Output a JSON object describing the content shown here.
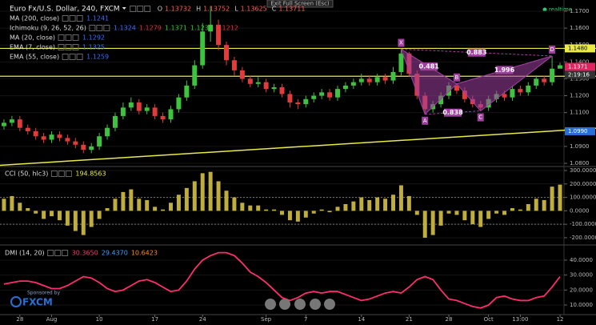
{
  "ui": {
    "exit_fullscreen": "Exit Full Screen (Esc)",
    "realtime": "realtime",
    "sponsored": "Sponsored by",
    "brand": "FXCM"
  },
  "chart_data": [
    {
      "type": "candlestick",
      "title": "Euro Fx/U.S. Dollar, 240, FXCM",
      "ohlc": [
        {
          "label": "O",
          "value": "1.13732"
        },
        {
          "label": "H",
          "value": "1.13752"
        },
        {
          "label": "L",
          "value": "1.13625"
        },
        {
          "label": "C",
          "value": "1.13711"
        }
      ],
      "indicators": [
        {
          "name": "MA (200, close)",
          "values": [
            {
              "text": "1.1241",
              "color": "#3b6cff"
            }
          ]
        },
        {
          "name": "Ichimoku (9, 26, 52, 26)",
          "values": [
            {
              "text": "1.1324",
              "color": "#3b6cff"
            },
            {
              "text": "1.1279",
              "color": "#e0303a"
            },
            {
              "text": "1.1371",
              "color": "#39c43a"
            },
            {
              "text": "1.1230",
              "color": "#39c43a"
            },
            {
              "text": "1.1212",
              "color": "#e0303a"
            }
          ]
        },
        {
          "name": "MA (20, close)",
          "values": [
            {
              "text": "1.1292",
              "color": "#3b6cff"
            }
          ]
        },
        {
          "name": "EMA (7, close)",
          "values": [
            {
              "text": "1.1325",
              "color": "#3b6cff"
            }
          ]
        },
        {
          "name": "EMA (55, close)",
          "values": [
            {
              "text": "1.1259",
              "color": "#3b6cff"
            }
          ]
        }
      ],
      "categories": [
        null,
        null,
        "28",
        null,
        null,
        null,
        "Aug",
        null,
        null,
        null,
        null,
        null,
        "10",
        null,
        null,
        null,
        null,
        null,
        null,
        "17",
        null,
        null,
        null,
        null,
        null,
        "24",
        null,
        null,
        null,
        null,
        null,
        null,
        null,
        "Sep",
        null,
        null,
        null,
        null,
        "7",
        null,
        null,
        null,
        null,
        null,
        null,
        "14",
        null,
        null,
        null,
        null,
        null,
        "21",
        null,
        null,
        null,
        null,
        "28",
        null,
        null,
        null,
        null,
        "Oct",
        null,
        null,
        null,
        "13:00",
        null,
        null,
        null,
        null,
        "12"
      ],
      "open": [
        1.102,
        1.104,
        1.106,
        1.101,
        1.099,
        1.096,
        1.094,
        1.097,
        1.095,
        1.093,
        1.091,
        1.088,
        1.09,
        1.096,
        1.101,
        1.108,
        1.113,
        1.116,
        1.111,
        1.113,
        1.108,
        1.106,
        1.112,
        1.119,
        1.126,
        1.138,
        1.158,
        1.162,
        1.15,
        1.141,
        1.135,
        1.13,
        1.127,
        1.128,
        1.124,
        1.125,
        1.121,
        1.116,
        1.115,
        1.118,
        1.12,
        1.122,
        1.119,
        1.124,
        1.126,
        1.128,
        1.13,
        1.128,
        1.131,
        1.129,
        1.134,
        1.145,
        1.133,
        1.12,
        1.112,
        1.115,
        1.12,
        1.126,
        1.123,
        1.118,
        1.115,
        1.113,
        1.118,
        1.121,
        1.119,
        1.124,
        1.122,
        1.126,
        1.13,
        1.128,
        1.136
      ],
      "high": [
        1.106,
        1.108,
        1.108,
        1.103,
        1.101,
        1.098,
        1.099,
        1.099,
        1.097,
        1.095,
        1.093,
        1.092,
        1.098,
        1.103,
        1.11,
        1.116,
        1.119,
        1.118,
        1.115,
        1.115,
        1.11,
        1.114,
        1.121,
        1.129,
        1.141,
        1.163,
        1.173,
        1.165,
        1.152,
        1.143,
        1.137,
        1.132,
        1.131,
        1.13,
        1.127,
        1.127,
        1.123,
        1.118,
        1.12,
        1.122,
        1.124,
        1.124,
        1.126,
        1.128,
        1.13,
        1.133,
        1.132,
        1.133,
        1.133,
        1.137,
        1.1475,
        1.146,
        1.135,
        1.122,
        1.117,
        1.122,
        1.128,
        1.127,
        1.125,
        1.12,
        1.117,
        1.12,
        1.123,
        1.123,
        1.126,
        1.126,
        1.128,
        1.132,
        1.132,
        1.1435,
        1.1395
      ],
      "low": [
        1.1,
        1.102,
        1.099,
        1.097,
        1.094,
        1.092,
        1.092,
        1.093,
        1.091,
        1.089,
        1.086,
        1.086,
        1.088,
        1.094,
        1.099,
        1.106,
        1.111,
        1.109,
        1.109,
        1.106,
        1.104,
        1.104,
        1.11,
        1.117,
        1.124,
        1.136,
        1.152,
        1.147,
        1.138,
        1.132,
        1.128,
        1.125,
        1.125,
        1.122,
        1.122,
        1.119,
        1.113,
        1.112,
        1.113,
        1.116,
        1.118,
        1.117,
        1.117,
        1.122,
        1.124,
        1.126,
        1.126,
        1.126,
        1.127,
        1.127,
        1.132,
        1.131,
        1.118,
        1.109,
        1.11,
        1.113,
        1.118,
        1.121,
        1.116,
        1.113,
        1.111,
        1.111,
        1.116,
        1.117,
        1.117,
        1.12,
        1.12,
        1.124,
        1.126,
        1.126,
        1.1362
      ],
      "close": [
        1.104,
        1.106,
        1.101,
        1.099,
        1.096,
        1.094,
        1.097,
        1.095,
        1.093,
        1.091,
        1.088,
        1.09,
        1.096,
        1.101,
        1.108,
        1.113,
        1.116,
        1.111,
        1.113,
        1.108,
        1.106,
        1.112,
        1.119,
        1.126,
        1.138,
        1.158,
        1.162,
        1.15,
        1.141,
        1.135,
        1.13,
        1.127,
        1.128,
        1.124,
        1.125,
        1.121,
        1.116,
        1.115,
        1.118,
        1.12,
        1.122,
        1.119,
        1.124,
        1.126,
        1.128,
        1.13,
        1.128,
        1.131,
        1.129,
        1.134,
        1.145,
        1.133,
        1.12,
        1.112,
        1.115,
        1.12,
        1.126,
        1.123,
        1.118,
        1.115,
        1.113,
        1.118,
        1.121,
        1.119,
        1.124,
        1.122,
        1.126,
        1.13,
        1.128,
        1.136,
        1.138
      ],
      "up_color": "#3fc23f",
      "down_color": "#e03c3c",
      "ylim": [
        1.0786,
        1.1733
      ],
      "yticks": [
        {
          "value": 1.17,
          "label": "1.1700"
        },
        {
          "value": 1.16,
          "label": "1.1600"
        },
        {
          "value": 1.15,
          "label": "1.1500"
        },
        {
          "value": 1.14,
          "label": "1.1400"
        },
        {
          "value": 1.13,
          "label": "1.1300"
        },
        {
          "value": 1.12,
          "label": "1.1200"
        },
        {
          "value": 1.11,
          "label": "1.1100"
        },
        {
          "value": 1.1,
          "label": "1.1000"
        },
        {
          "value": 1.09,
          "label": "1.0900"
        },
        {
          "value": 1.08,
          "label": "1.0800"
        }
      ],
      "hlines": [
        {
          "value": 1.148,
          "color": "#eaea4a"
        },
        {
          "value": 1.1315,
          "color": "#eaea4a"
        }
      ],
      "trendline": {
        "x": [
          0,
          70
        ],
        "y": [
          1.079,
          1.0994
        ],
        "color": "#eaea4a"
      },
      "pattern": {
        "color": "#a040a0",
        "points": [
          {
            "label": "X",
            "x": 50,
            "value": 1.1475
          },
          {
            "label": "A",
            "x": 53,
            "value": 1.109
          },
          {
            "label": "B",
            "x": 57,
            "value": 1.127
          },
          {
            "label": "C",
            "x": 60,
            "value": 1.111
          },
          {
            "label": "D",
            "x": 69,
            "value": 1.1435
          }
        ],
        "ratios": [
          "0.481",
          "0.883",
          "1.996",
          "0.838"
        ]
      },
      "price_markers": [
        {
          "value": 1.148,
          "label": "1.1480",
          "color": "#eaea4a"
        },
        {
          "value": 1.1371,
          "label": "1.1371",
          "color": "#e0245e"
        },
        {
          "value": 1.099,
          "label": "1.0990",
          "color": "#2a6fd6"
        }
      ],
      "countdown": "2:19:16"
    },
    {
      "type": "bar",
      "title": "CCI (50, hlc3)",
      "legend_values": [
        {
          "text": "194.8563",
          "color": "#eaea4a"
        }
      ],
      "values": [
        90,
        110,
        60,
        20,
        -20,
        -60,
        -40,
        -70,
        -110,
        -150,
        -180,
        -120,
        -60,
        20,
        90,
        140,
        160,
        90,
        80,
        30,
        10,
        60,
        120,
        170,
        220,
        280,
        290,
        220,
        150,
        100,
        60,
        40,
        40,
        10,
        10,
        -30,
        -70,
        -80,
        -50,
        -20,
        10,
        -10,
        30,
        50,
        70,
        100,
        80,
        100,
        90,
        120,
        190,
        110,
        -30,
        -200,
        -180,
        -110,
        -20,
        -30,
        -70,
        -100,
        -120,
        -60,
        -20,
        -30,
        20,
        10,
        50,
        90,
        80,
        180,
        195
      ],
      "color": "#bfae3e",
      "ylim": [
        -248,
        324
      ],
      "yticks": [
        {
          "value": 300,
          "label": "300.0000"
        },
        {
          "value": 200,
          "label": "200.0000"
        },
        {
          "value": 100,
          "label": "100.0000"
        },
        {
          "value": 0,
          "label": "0.0000"
        },
        {
          "value": -100,
          "label": "-100.0000"
        },
        {
          "value": -200,
          "label": "-200.0000"
        }
      ],
      "levels": [
        100,
        -100
      ]
    },
    {
      "type": "line",
      "title": "DMI (14, 20)",
      "legend_values": [
        {
          "text": "30.3650",
          "color": "#ff3070"
        },
        {
          "text": "29.4370",
          "color": "#3fa0ff"
        },
        {
          "text": "10.6423",
          "color": "#ff8c1a"
        }
      ],
      "values": [
        24,
        25,
        26,
        26,
        25,
        23,
        21,
        21,
        23,
        26,
        29,
        28,
        25,
        21,
        19,
        20,
        23,
        26,
        27,
        25,
        22,
        19,
        20,
        26,
        34,
        40,
        43,
        45,
        45,
        43,
        38,
        32,
        29,
        25,
        20,
        15,
        13,
        15,
        18,
        19,
        18,
        19,
        19,
        17,
        15,
        13,
        14,
        16,
        18,
        19,
        18,
        22,
        27,
        29,
        27,
        20,
        14,
        13,
        11,
        9,
        8,
        10,
        15,
        16,
        14,
        13,
        13,
        15,
        16,
        22,
        29
      ],
      "color": "#ff2d6f",
      "ylim": [
        3.6,
        49.6
      ],
      "yticks": [
        {
          "value": 40,
          "label": "40.0000"
        },
        {
          "value": 30,
          "label": "30.0000"
        },
        {
          "value": 20,
          "label": "20.0000"
        },
        {
          "value": 10,
          "label": "10.0000"
        }
      ]
    }
  ]
}
